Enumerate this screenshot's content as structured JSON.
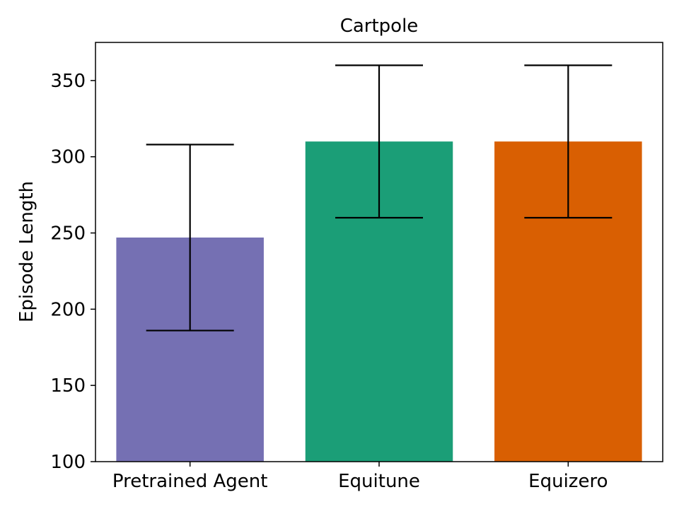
{
  "chart_data": {
    "type": "bar",
    "title": "Cartpole",
    "xlabel": "",
    "ylabel": "Episode Length",
    "categories": [
      "Pretrained Agent",
      "Equitune",
      "Equizero"
    ],
    "values": [
      247,
      310,
      310
    ],
    "error_low": [
      186,
      260,
      260
    ],
    "error_high": [
      308,
      360,
      360
    ],
    "colors": [
      "#7570b3",
      "#1b9e77",
      "#d95f02"
    ],
    "ylim": [
      100,
      375
    ],
    "yticks": [
      100,
      150,
      200,
      250,
      300,
      350
    ],
    "grid": false
  }
}
